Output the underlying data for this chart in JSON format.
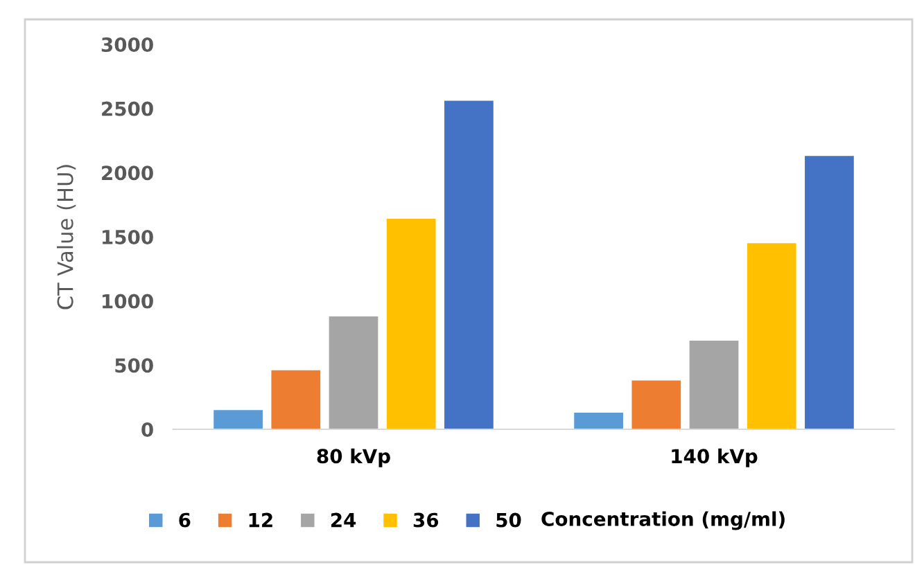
{
  "chart_data": {
    "type": "bar",
    "ylabel": "CT Value (HU)",
    "legend_title": "Concentration (mg/ml)",
    "categories": [
      "80 kVp",
      "140 kVp"
    ],
    "series": [
      {
        "name": "6",
        "color": "#5b9bd5",
        "values": [
          150,
          130
        ]
      },
      {
        "name": "12",
        "color": "#ed7d31",
        "values": [
          460,
          380
        ]
      },
      {
        "name": "24",
        "color": "#a5a5a5",
        "values": [
          880,
          690
        ]
      },
      {
        "name": "36",
        "color": "#ffc000",
        "values": [
          1640,
          1450
        ]
      },
      {
        "name": "50",
        "color": "#4472c4",
        "values": [
          2560,
          2130
        ]
      }
    ],
    "ylim": [
      0,
      3000
    ],
    "yticks": [
      0,
      500,
      1000,
      1500,
      2000,
      2500,
      3000
    ],
    "grid": false,
    "legend": "bottom"
  }
}
